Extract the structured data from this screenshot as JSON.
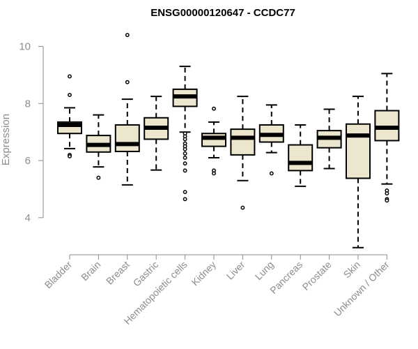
{
  "chart_data": {
    "type": "boxplot",
    "title": "ENSG00000120647 - CCDC77",
    "ylabel": "Expression",
    "ylim": [
      2.7,
      10.6
    ],
    "yticks": [
      4,
      6,
      8,
      10
    ],
    "grid": false,
    "box_fill": "#ede6ce",
    "categories": [
      "Bladder",
      "Brain",
      "Breast",
      "Gastric",
      "Hematopoietic cells",
      "Kidney",
      "Liver",
      "Lung",
      "Pancreas",
      "Prostate",
      "Skin",
      "Unknown / Other"
    ],
    "boxes": [
      {
        "whisker_low": 6.42,
        "q1": 6.95,
        "median": 7.25,
        "q3": 7.35,
        "whisker_high": 7.85,
        "outliers": [
          8.95,
          8.3,
          6.2,
          6.15
        ]
      },
      {
        "whisker_low": 5.78,
        "q1": 6.3,
        "median": 6.55,
        "q3": 6.88,
        "whisker_high": 7.6,
        "outliers": [
          5.4
        ]
      },
      {
        "whisker_low": 5.15,
        "q1": 6.32,
        "median": 6.58,
        "q3": 7.25,
        "whisker_high": 8.15,
        "outliers": [
          10.4,
          8.75
        ]
      },
      {
        "whisker_low": 5.67,
        "q1": 6.75,
        "median": 7.15,
        "q3": 7.5,
        "whisker_high": 8.25,
        "outliers": []
      },
      {
        "whisker_low": 7.0,
        "q1": 7.9,
        "median": 8.25,
        "q3": 8.5,
        "whisker_high": 9.3,
        "outliers": [
          6.95,
          6.85,
          6.75,
          6.6,
          6.5,
          6.4,
          6.25,
          6.1,
          5.9,
          5.65,
          4.9,
          4.65
        ]
      },
      {
        "whisker_low": 6.1,
        "q1": 6.5,
        "median": 6.8,
        "q3": 6.95,
        "whisker_high": 7.35,
        "outliers": [
          7.82,
          5.65,
          5.55
        ]
      },
      {
        "whisker_low": 5.3,
        "q1": 6.2,
        "median": 6.8,
        "q3": 7.1,
        "whisker_high": 8.25,
        "outliers": [
          4.35
        ]
      },
      {
        "whisker_low": 6.28,
        "q1": 6.65,
        "median": 6.9,
        "q3": 7.25,
        "whisker_high": 7.95,
        "outliers": [
          5.55
        ]
      },
      {
        "whisker_low": 5.1,
        "q1": 5.65,
        "median": 5.92,
        "q3": 6.55,
        "whisker_high": 7.25,
        "outliers": []
      },
      {
        "whisker_low": 5.72,
        "q1": 6.45,
        "median": 6.8,
        "q3": 7.05,
        "whisker_high": 7.8,
        "outliers": []
      },
      {
        "whisker_low": 2.95,
        "q1": 5.38,
        "median": 6.88,
        "q3": 7.28,
        "whisker_high": 8.25,
        "outliers": []
      },
      {
        "whisker_low": 5.18,
        "q1": 6.7,
        "median": 7.15,
        "q3": 7.75,
        "whisker_high": 9.05,
        "outliers": [
          4.95,
          4.85,
          4.65,
          4.6
        ]
      }
    ]
  }
}
